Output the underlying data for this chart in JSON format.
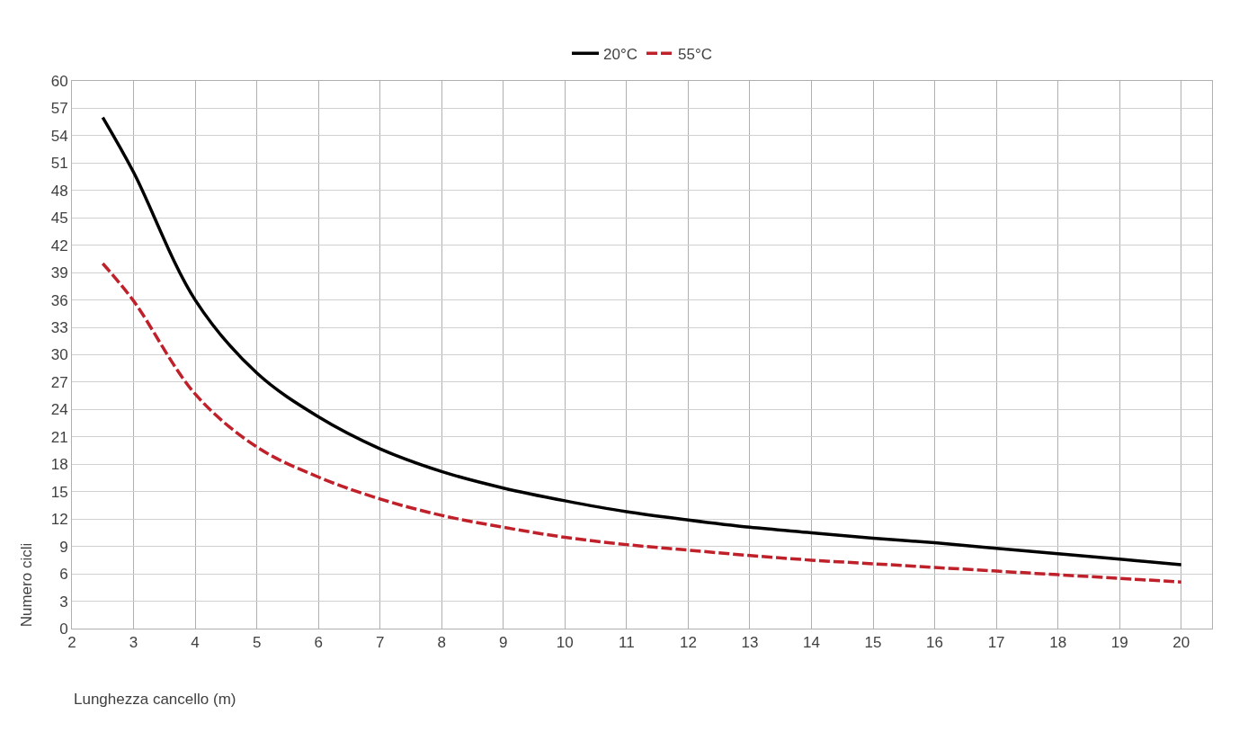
{
  "chart_data": {
    "type": "line",
    "xlabel": "Lunghezza cancello (m)",
    "ylabel": "Numero cicli",
    "x": [
      2.5,
      3,
      4,
      5,
      6,
      7,
      8,
      9,
      10,
      11,
      12,
      13,
      14,
      15,
      16,
      17,
      18,
      19,
      20
    ],
    "series": [
      {
        "name": "20°C",
        "color": "#000000",
        "line_style": "solid",
        "values": [
          56,
          50,
          36,
          28,
          23.2,
          19.7,
          17.2,
          15.4,
          14,
          12.8,
          11.9,
          11.1,
          10.5,
          9.9,
          9.4,
          8.8,
          8.2,
          7.6,
          7
        ]
      },
      {
        "name": "55°C",
        "color": "#c0202a",
        "line_style": "dashed",
        "values": [
          40,
          35.9,
          25.7,
          19.9,
          16.6,
          14.2,
          12.4,
          11.1,
          10,
          9.2,
          8.6,
          8,
          7.5,
          7.1,
          6.7,
          6.3,
          5.9,
          5.5,
          5.1
        ]
      }
    ],
    "xlim": [
      2,
      20.5
    ],
    "xticks": [
      2,
      3,
      4,
      5,
      6,
      7,
      8,
      9,
      10,
      11,
      12,
      13,
      14,
      15,
      16,
      17,
      18,
      19,
      20
    ],
    "ylim": [
      0,
      60
    ],
    "yticks": [
      0,
      3,
      6,
      9,
      12,
      15,
      18,
      21,
      24,
      27,
      30,
      33,
      36,
      39,
      42,
      45,
      48,
      51,
      54,
      57,
      60
    ],
    "grid": true,
    "legend": "top",
    "marker": "none"
  }
}
